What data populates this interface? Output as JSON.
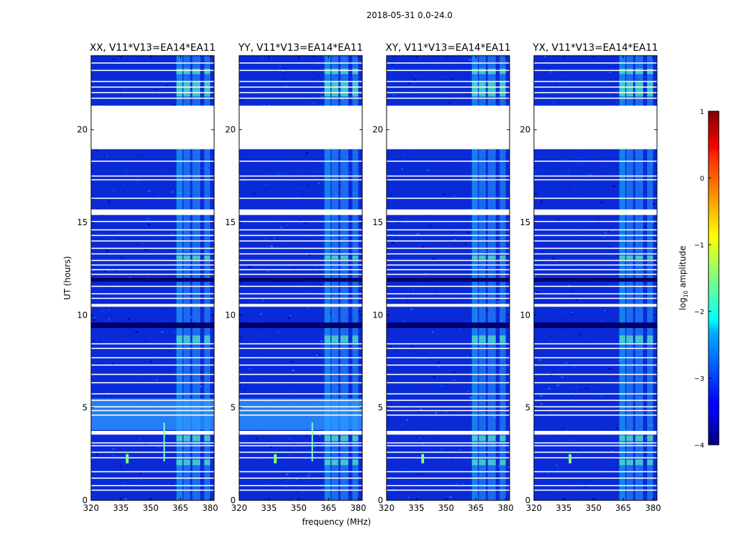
{
  "figure_title": "2018-05-31 0.0-24.0",
  "xlabel": "frequency (MHz)",
  "ylabel": "UT (hours)",
  "colorbar": {
    "label_prefix": "log",
    "label_sub": "10",
    "label_suffix": " amplitude",
    "ticks": [
      "1",
      "0",
      "−1",
      "−2",
      "−3",
      "−4"
    ],
    "range": [
      -4,
      1
    ],
    "colormap": "jet"
  },
  "chart_data": [
    {
      "type": "heatmap",
      "title": "XX, V11*V13=EA14*EA11",
      "xlim": [
        320,
        382
      ],
      "ylim": [
        0,
        24
      ],
      "xticks": [
        "320",
        "335",
        "350",
        "365",
        "380"
      ],
      "yticks": [
        "0",
        "5",
        "10",
        "15",
        "20"
      ],
      "rfi_spikes": true
    },
    {
      "type": "heatmap",
      "title": "YY, V11*V13=EA14*EA11",
      "xlim": [
        320,
        382
      ],
      "ylim": [
        0,
        24
      ],
      "xticks": [
        "320",
        "335",
        "350",
        "365",
        "380"
      ],
      "yticks": [
        "0",
        "5",
        "10",
        "15",
        "20"
      ],
      "rfi_spikes": true
    },
    {
      "type": "heatmap",
      "title": "XY, V11*V13=EA14*EA11",
      "xlim": [
        320,
        382
      ],
      "ylim": [
        0,
        24
      ],
      "xticks": [
        "320",
        "335",
        "350",
        "365",
        "380"
      ],
      "yticks": [
        "0",
        "5",
        "10",
        "15",
        "20"
      ],
      "rfi_spikes": false
    },
    {
      "type": "heatmap",
      "title": "YX, V11*V13=EA14*EA11",
      "xlim": [
        320,
        382
      ],
      "ylim": [
        0,
        24
      ],
      "xticks": [
        "320",
        "335",
        "350",
        "365",
        "380"
      ],
      "yticks": [
        "0",
        "5",
        "10",
        "15",
        "20"
      ],
      "rfi_spikes": false
    }
  ],
  "flagged_ut_ranges": [
    [
      18.95,
      21.3
    ],
    [
      15.4,
      15.7
    ],
    [
      10.45,
      10.6
    ],
    [
      3.55,
      3.75
    ]
  ],
  "dark_ut_ranges": [
    [
      9.3,
      9.6
    ],
    [
      11.8,
      12.0
    ]
  ],
  "bright_band_mhz": [
    [
      363,
      366
    ],
    [
      366.5,
      370
    ],
    [
      371,
      375
    ],
    [
      377,
      380
    ]
  ]
}
